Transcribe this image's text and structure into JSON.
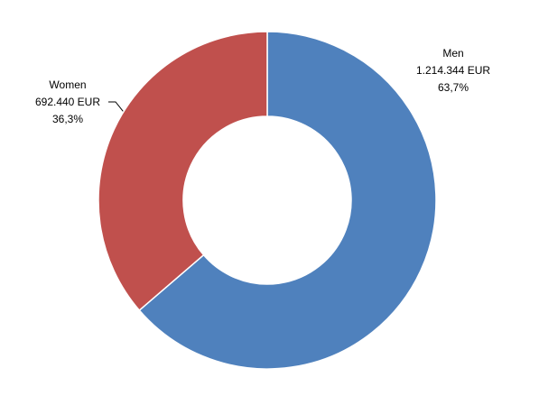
{
  "chart_data": {
    "type": "donut",
    "categories": [
      "Men",
      "Women"
    ],
    "values": [
      1214344,
      692440
    ],
    "value_labels": [
      "1.214.344 EUR",
      "692.440 EUR"
    ],
    "percentages": [
      63.7,
      36.3
    ],
    "percentage_labels": [
      "63,7%",
      "36,3%"
    ],
    "colors": [
      "#4f81bd",
      "#c0504d"
    ]
  }
}
